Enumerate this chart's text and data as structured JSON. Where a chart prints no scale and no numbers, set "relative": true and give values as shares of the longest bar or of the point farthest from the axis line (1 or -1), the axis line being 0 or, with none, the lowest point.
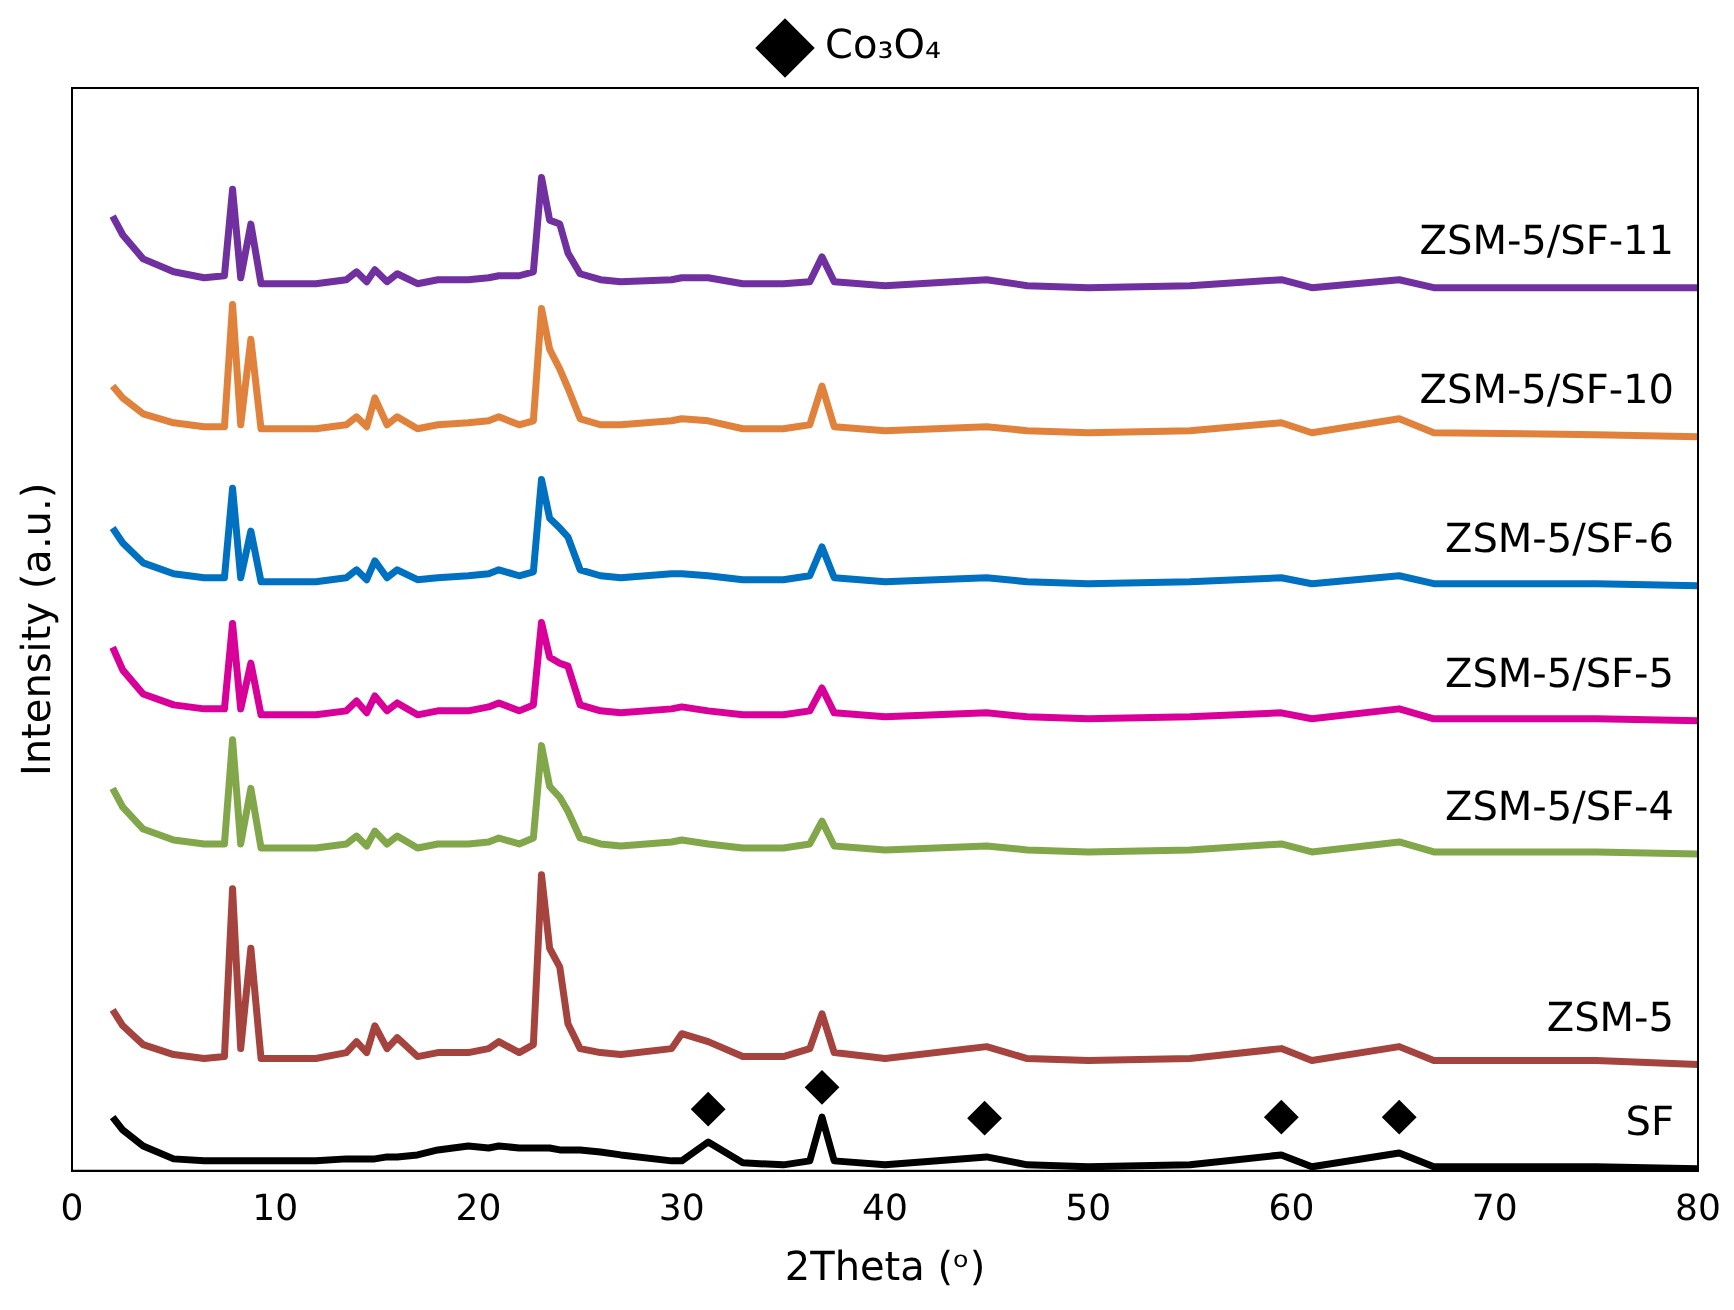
{
  "chart_data": {
    "type": "line",
    "relative": true,
    "xlabel": "2Theta (ᵒ)",
    "ylabel": "Intensity (a.u.)",
    "xlim": [
      0,
      80
    ],
    "xticks": [
      0,
      10,
      20,
      30,
      40,
      50,
      60,
      70,
      80
    ],
    "grid": false,
    "legend": "top",
    "marker": "none",
    "line_style": "solid",
    "x": [
      2,
      2.5,
      3.5,
      5,
      6.5,
      7.5,
      7.9,
      8.3,
      8.8,
      9.3,
      10,
      12,
      13.5,
      14,
      14.5,
      14.9,
      15.5,
      16,
      17,
      18,
      19.5,
      20.5,
      21,
      22,
      22.7,
      23.1,
      23.5,
      24,
      24.4,
      25,
      26,
      27,
      29.5,
      30,
      31.3,
      33,
      35,
      36.3,
      36.9,
      37.5,
      40,
      45,
      47,
      50,
      55,
      59.5,
      61,
      65.3,
      67,
      75,
      80
    ],
    "series": [
      {
        "name": "ZSM-5/SF-11",
        "color": "#7030a0",
        "values": [
          0.961,
          0.942,
          0.918,
          0.905,
          0.899,
          0.901,
          0.988,
          0.899,
          0.953,
          0.893,
          0.893,
          0.893,
          0.897,
          0.905,
          0.895,
          0.907,
          0.895,
          0.903,
          0.893,
          0.897,
          0.897,
          0.899,
          0.901,
          0.901,
          0.905,
          1.0,
          0.957,
          0.953,
          0.924,
          0.903,
          0.897,
          0.895,
          0.897,
          0.899,
          0.899,
          0.893,
          0.893,
          0.895,
          0.92,
          0.895,
          0.891,
          0.897,
          0.891,
          0.889,
          0.891,
          0.897,
          0.889,
          0.897,
          0.889,
          0.889,
          0.889
        ]
      },
      {
        "name": "ZSM-5/SF-10",
        "color": "#e0823c",
        "values": [
          0.79,
          0.778,
          0.762,
          0.753,
          0.749,
          0.749,
          0.872,
          0.751,
          0.837,
          0.747,
          0.747,
          0.747,
          0.751,
          0.759,
          0.749,
          0.778,
          0.751,
          0.759,
          0.747,
          0.751,
          0.753,
          0.755,
          0.759,
          0.751,
          0.755,
          0.868,
          0.827,
          0.807,
          0.788,
          0.757,
          0.751,
          0.751,
          0.755,
          0.757,
          0.755,
          0.747,
          0.747,
          0.751,
          0.79,
          0.749,
          0.745,
          0.749,
          0.745,
          0.743,
          0.745,
          0.753,
          0.743,
          0.757,
          0.743,
          0.741,
          0.739
        ]
      },
      {
        "name": "ZSM-5/SF-6",
        "color": "#0070c0",
        "values": [
          0.647,
          0.632,
          0.612,
          0.601,
          0.597,
          0.597,
          0.687,
          0.597,
          0.644,
          0.593,
          0.593,
          0.593,
          0.597,
          0.605,
          0.595,
          0.614,
          0.597,
          0.605,
          0.595,
          0.597,
          0.599,
          0.601,
          0.605,
          0.599,
          0.603,
          0.696,
          0.657,
          0.647,
          0.638,
          0.605,
          0.599,
          0.597,
          0.601,
          0.601,
          0.599,
          0.595,
          0.595,
          0.599,
          0.628,
          0.597,
          0.593,
          0.597,
          0.593,
          0.591,
          0.593,
          0.597,
          0.591,
          0.599,
          0.591,
          0.591,
          0.589
        ]
      },
      {
        "name": "ZSM-5/SF-5",
        "color": "#d9009a",
        "values": [
          0.527,
          0.504,
          0.48,
          0.469,
          0.465,
          0.465,
          0.551,
          0.465,
          0.511,
          0.459,
          0.459,
          0.459,
          0.463,
          0.473,
          0.461,
          0.478,
          0.463,
          0.471,
          0.459,
          0.463,
          0.463,
          0.467,
          0.471,
          0.463,
          0.469,
          0.552,
          0.517,
          0.511,
          0.508,
          0.469,
          0.463,
          0.461,
          0.465,
          0.467,
          0.463,
          0.459,
          0.459,
          0.463,
          0.486,
          0.461,
          0.457,
          0.461,
          0.457,
          0.455,
          0.457,
          0.461,
          0.455,
          0.465,
          0.455,
          0.455,
          0.453
        ]
      },
      {
        "name": "ZSM-5/SF-4",
        "color": "#82a64a",
        "values": [
          0.385,
          0.366,
          0.344,
          0.333,
          0.329,
          0.329,
          0.434,
          0.329,
          0.385,
          0.325,
          0.325,
          0.325,
          0.329,
          0.337,
          0.327,
          0.342,
          0.329,
          0.337,
          0.325,
          0.329,
          0.329,
          0.331,
          0.335,
          0.329,
          0.335,
          0.428,
          0.387,
          0.376,
          0.362,
          0.335,
          0.329,
          0.327,
          0.331,
          0.333,
          0.329,
          0.325,
          0.325,
          0.329,
          0.352,
          0.327,
          0.323,
          0.327,
          0.323,
          0.321,
          0.323,
          0.329,
          0.321,
          0.331,
          0.321,
          0.321,
          0.319
        ]
      },
      {
        "name": "ZSM-5",
        "color": "#a5443e",
        "values": [
          0.162,
          0.146,
          0.127,
          0.117,
          0.113,
          0.115,
          0.284,
          0.123,
          0.224,
          0.113,
          0.113,
          0.113,
          0.119,
          0.13,
          0.119,
          0.146,
          0.123,
          0.134,
          0.115,
          0.119,
          0.119,
          0.123,
          0.13,
          0.119,
          0.127,
          0.298,
          0.224,
          0.205,
          0.148,
          0.123,
          0.119,
          0.117,
          0.123,
          0.138,
          0.13,
          0.115,
          0.115,
          0.123,
          0.158,
          0.119,
          0.113,
          0.125,
          0.113,
          0.111,
          0.113,
          0.123,
          0.111,
          0.125,
          0.111,
          0.111,
          0.107
        ]
      },
      {
        "name": "SF",
        "color": "#000000",
        "values": [
          0.054,
          0.041,
          0.025,
          0.012,
          0.01,
          0.01,
          0.01,
          0.01,
          0.01,
          0.01,
          0.01,
          0.01,
          0.012,
          0.012,
          0.012,
          0.012,
          0.014,
          0.014,
          0.016,
          0.021,
          0.025,
          0.023,
          0.025,
          0.023,
          0.023,
          0.023,
          0.023,
          0.021,
          0.021,
          0.021,
          0.019,
          0.016,
          0.01,
          0.01,
          0.029,
          0.008,
          0.006,
          0.01,
          0.054,
          0.01,
          0.006,
          0.014,
          0.006,
          0.004,
          0.006,
          0.016,
          0.004,
          0.018,
          0.004,
          0.004,
          0.002
        ]
      },
      {
        "name": "Co₃O₄",
        "type": "scatter",
        "marker": "diamond",
        "color": "#000000",
        "x": [
          31.3,
          36.9,
          44.9,
          59.5,
          65.3
        ],
        "values": [
          0.062,
          0.084,
          0.053,
          0.054,
          0.054
        ]
      }
    ]
  }
}
